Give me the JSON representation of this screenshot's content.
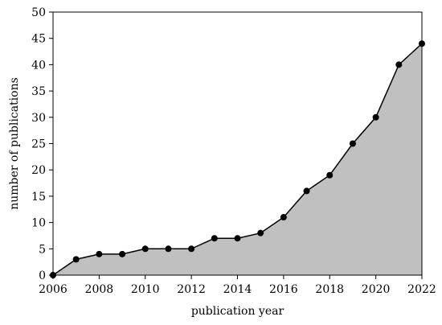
{
  "chart_data": {
    "type": "area",
    "title": "",
    "xlabel": "publication year",
    "ylabel": "number of publications",
    "x": [
      2006,
      2007,
      2008,
      2009,
      2010,
      2011,
      2012,
      2013,
      2014,
      2015,
      2016,
      2017,
      2018,
      2019,
      2020,
      2021,
      2022
    ],
    "values": [
      0,
      3,
      4,
      4,
      5,
      5,
      5,
      7,
      7,
      8,
      11,
      16,
      19,
      25,
      30,
      40,
      44
    ],
    "xlim": [
      2006,
      2022
    ],
    "ylim": [
      0,
      50
    ],
    "x_ticks": [
      "2006",
      "2008",
      "2010",
      "2012",
      "2014",
      "2016",
      "2018",
      "2020",
      "2022"
    ],
    "y_ticks": [
      "0",
      "5",
      "10",
      "15",
      "20",
      "25",
      "30",
      "35",
      "40",
      "45",
      "50"
    ],
    "grid": false,
    "legend": "none",
    "colors": {
      "area_fill": "#c0c0c0",
      "line": "#000000",
      "marker": "#000000",
      "axis": "#000000"
    }
  }
}
